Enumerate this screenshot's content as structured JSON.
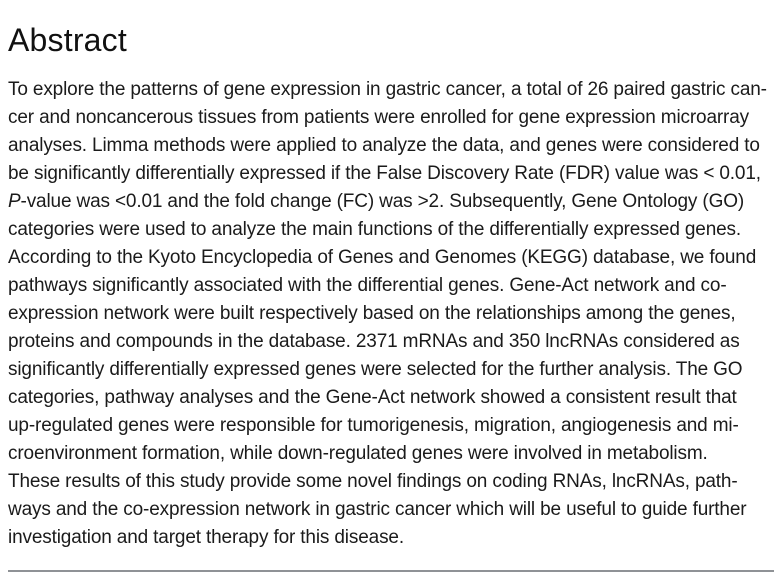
{
  "section": {
    "title": "Abstract"
  },
  "abstract": {
    "p_italic": "P",
    "lines": [
      "To explore the patterns of gene expression in gastric cancer, a total of 26 paired gastric can-",
      "cer and noncancerous tissues from patients were enrolled for gene expression microarray",
      "analyses. Limma methods were applied to analyze the data, and genes were considered to",
      "be significantly differentially expressed if the False Discovery Rate (FDR) value was < 0.01,",
      "-value was <0.01 and the fold change (FC) was >2. Subsequently, Gene Ontology (GO)",
      "categories were used to analyze the main functions of the differentially expressed genes.",
      "According to the Kyoto Encyclopedia of Genes and Genomes (KEGG) database, we found",
      "pathways significantly associated with the differential genes. Gene-Act network and co-",
      "expression network were built respectively based on the relationships among the genes,",
      "proteins and compounds in the database. 2371 mRNAs and 350 lncRNAs considered as",
      "significantly differentially expressed genes were selected for the further analysis. The GO",
      "categories, pathway analyses and the Gene-Act network showed a consistent result that",
      "up-regulated genes were responsible for tumorigenesis, migration, angiogenesis and mi-",
      "croenvironment formation, while down-regulated genes were involved in metabolism.",
      "These results of this study provide some novel findings on coding RNAs, lncRNAs, path-",
      "ways and the co-expression network in gastric cancer which will be useful to guide further",
      "investigation and target therapy for this disease."
    ]
  },
  "colors": {
    "text": "#1b1b1b",
    "heading": "#111111",
    "divider": "#8f9296",
    "background": "#ffffff"
  }
}
